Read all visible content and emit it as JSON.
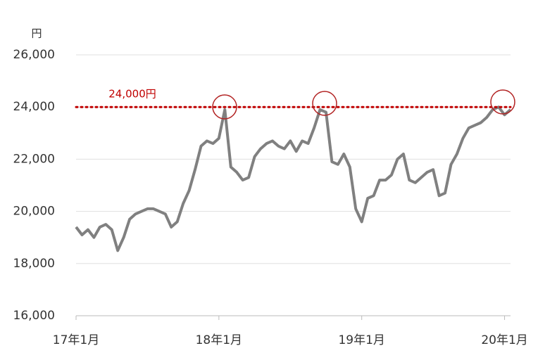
{
  "chart_data": {
    "type": "line",
    "y_unit": "円",
    "xlim": [
      0,
      36.5
    ],
    "xticks": [
      {
        "value": 0,
        "label": "17年1月"
      },
      {
        "value": 12,
        "label": "18年1月"
      },
      {
        "value": 24,
        "label": "19年1月"
      },
      {
        "value": 36,
        "label": "20年1月"
      }
    ],
    "ylim": [
      16000,
      26000
    ],
    "yticks": [
      {
        "value": 16000,
        "label": "16,000"
      },
      {
        "value": 18000,
        "label": "18,000"
      },
      {
        "value": 20000,
        "label": "20,000"
      },
      {
        "value": 22000,
        "label": "22,000"
      },
      {
        "value": 24000,
        "label": "24,000"
      },
      {
        "value": 26000,
        "label": "26,000"
      }
    ],
    "grid": true,
    "reference_line": {
      "value": 24000,
      "label": "24,000円",
      "color": "#c00000"
    },
    "x": [
      0,
      0.5,
      1,
      1.5,
      2,
      2.5,
      3,
      3.5,
      4,
      4.5,
      5,
      5.5,
      6,
      6.5,
      7,
      7.5,
      8,
      8.5,
      9,
      9.5,
      10,
      10.5,
      11,
      11.5,
      12,
      12.5,
      13,
      13.5,
      14,
      14.5,
      15,
      15.5,
      16,
      16.5,
      17,
      17.5,
      18,
      18.5,
      19,
      19.5,
      20,
      20.5,
      21,
      21.5,
      22,
      22.5,
      23,
      23.5,
      24,
      24.5,
      25,
      25.5,
      26,
      26.5,
      27,
      27.5,
      28,
      28.5,
      29,
      29.5,
      30,
      30.5,
      31,
      31.5,
      32,
      32.5,
      33,
      33.5,
      34,
      34.5,
      35,
      35.5,
      36,
      36.5
    ],
    "series": [
      {
        "color": "#808080",
        "values": [
          19400,
          19100,
          19300,
          19000,
          19400,
          19500,
          19300,
          18500,
          19000,
          19700,
          19900,
          20000,
          20100,
          20100,
          20000,
          19900,
          19400,
          19600,
          20300,
          20800,
          21600,
          22500,
          22700,
          22600,
          22800,
          23900,
          21700,
          21500,
          21200,
          21300,
          22100,
          22400,
          22600,
          22700,
          22500,
          22400,
          22700,
          22300,
          22700,
          22600,
          23200,
          23900,
          23800,
          21900,
          21800,
          22200,
          21700,
          20100,
          19600,
          20500,
          20600,
          21200,
          21200,
          21400,
          22000,
          22200,
          21200,
          21100,
          21300,
          21500,
          21600,
          20600,
          20700,
          21800,
          22200,
          22800,
          23200,
          23300,
          23400,
          23600,
          23900,
          24000,
          23700,
          23900
        ]
      }
    ]
  }
}
